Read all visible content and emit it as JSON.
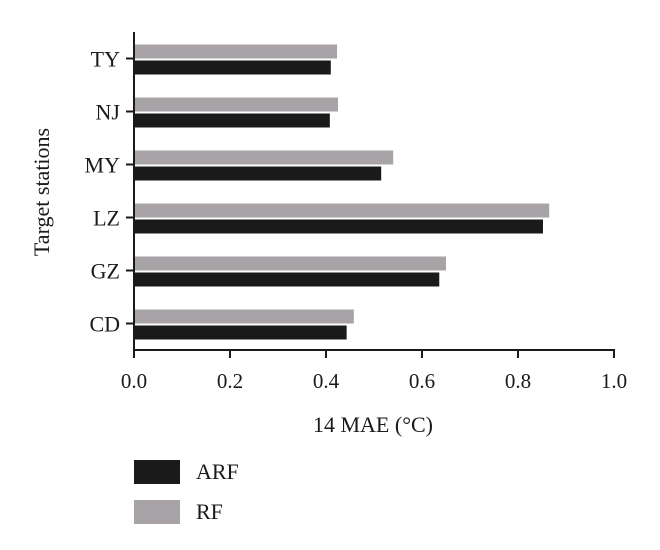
{
  "chart_data": {
    "type": "bar",
    "orientation": "horizontal",
    "title": "",
    "xlabel": "14 MAE (°C)",
    "ylabel": "Target stations",
    "categories": [
      "TY",
      "NJ",
      "MY",
      "LZ",
      "GZ",
      "CD"
    ],
    "xlim": [
      0.0,
      1.0
    ],
    "xticks": [
      "0.0",
      "0.2",
      "0.4",
      "0.6",
      "0.8",
      "1.0"
    ],
    "grid": false,
    "legend_position": "bottom-left",
    "series": [
      {
        "name": "ARF",
        "color": "#1a1a1a",
        "values": [
          0.41,
          0.408,
          0.515,
          0.852,
          0.636,
          0.443
        ]
      },
      {
        "name": "RF",
        "color": "#a8a3a6",
        "values": [
          0.423,
          0.425,
          0.54,
          0.865,
          0.65,
          0.458
        ]
      }
    ]
  }
}
